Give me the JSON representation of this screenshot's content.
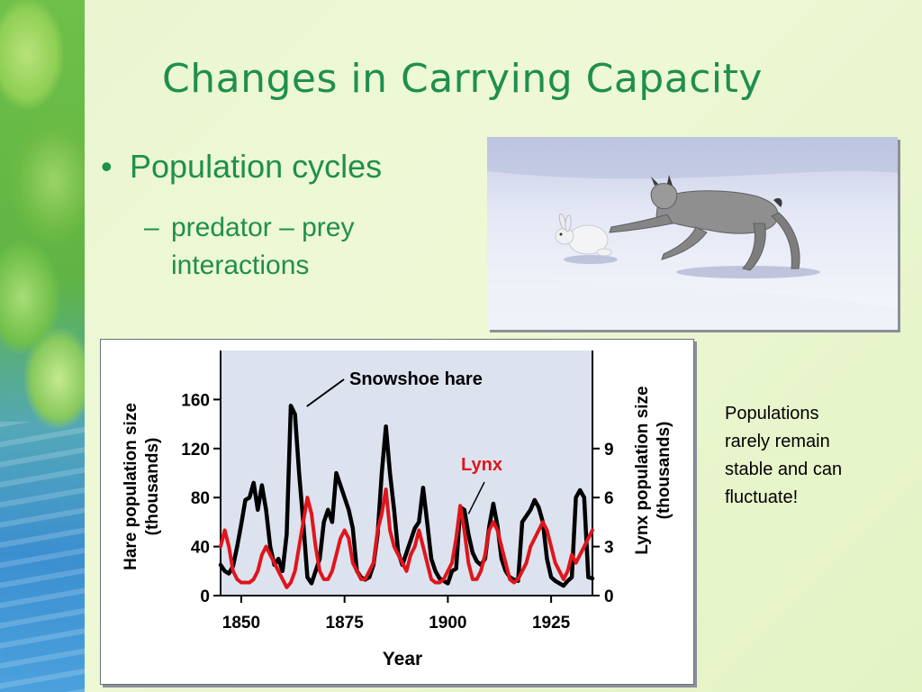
{
  "slide": {
    "title": "Changes in Carrying Capacity",
    "bullet": "Population cycles",
    "sub_bullet_dash": "–",
    "sub_bullet": "predator – prey interactions",
    "sub_bullet_lines": [
      "predator – prey",
      "interactions"
    ],
    "note_lines": [
      "Populations",
      "rarely remain",
      "stable and can",
      "fluctuate!"
    ]
  },
  "chart_data": {
    "type": "line",
    "xlabel": "Year",
    "ylabel_left": [
      "Hare population size",
      "(thousands)"
    ],
    "ylabel_right": [
      "Lynx population size",
      "(thousands)"
    ],
    "x_ticks": [
      1850,
      1875,
      1900,
      1925
    ],
    "y_left_ticks": [
      0,
      40,
      80,
      120,
      160
    ],
    "y_right_ticks": [
      0,
      3,
      6,
      9
    ],
    "xlim": [
      1845,
      1935
    ],
    "ylim_left": [
      0,
      200
    ],
    "ylim_right": [
      0,
      15
    ],
    "grid": false,
    "series": [
      {
        "name": "Snowshoe hare",
        "axis": "left",
        "color": "#000000",
        "x": [
          1845,
          1846,
          1847,
          1848,
          1849,
          1850,
          1851,
          1852,
          1853,
          1854,
          1855,
          1856,
          1857,
          1858,
          1859,
          1860,
          1861,
          1862,
          1863,
          1864,
          1865,
          1866,
          1867,
          1868,
          1869,
          1870,
          1871,
          1872,
          1873,
          1874,
          1875,
          1876,
          1877,
          1878,
          1879,
          1880,
          1881,
          1882,
          1883,
          1884,
          1885,
          1886,
          1887,
          1888,
          1889,
          1890,
          1891,
          1892,
          1893,
          1894,
          1895,
          1896,
          1897,
          1898,
          1899,
          1900,
          1901,
          1902,
          1903,
          1904,
          1905,
          1906,
          1907,
          1908,
          1909,
          1910,
          1911,
          1912,
          1913,
          1914,
          1915,
          1916,
          1917,
          1918,
          1919,
          1920,
          1921,
          1922,
          1923,
          1924,
          1925,
          1926,
          1927,
          1928,
          1929,
          1930,
          1931,
          1932,
          1933,
          1934,
          1935
        ],
        "values": [
          25,
          20,
          18,
          24,
          40,
          58,
          78,
          80,
          92,
          70,
          90,
          70,
          40,
          25,
          30,
          20,
          50,
          155,
          148,
          100,
          60,
          15,
          10,
          20,
          30,
          60,
          70,
          60,
          100,
          90,
          80,
          70,
          55,
          20,
          15,
          13,
          15,
          25,
          50,
          100,
          138,
          100,
          70,
          35,
          25,
          35,
          45,
          55,
          60,
          88,
          60,
          30,
          20,
          14,
          12,
          10,
          20,
          22,
          72,
          70,
          50,
          35,
          28,
          25,
          30,
          56,
          75,
          57,
          30,
          20,
          15,
          13,
          12,
          60,
          65,
          70,
          78,
          72,
          60,
          30,
          15,
          12,
          10,
          8,
          12,
          15,
          80,
          86,
          80,
          15,
          14
        ]
      },
      {
        "name": "Lynx",
        "axis": "right",
        "color": "#e0151b",
        "x": [
          1845,
          1846,
          1847,
          1848,
          1849,
          1850,
          1851,
          1852,
          1853,
          1854,
          1855,
          1856,
          1857,
          1858,
          1859,
          1860,
          1861,
          1862,
          1863,
          1864,
          1865,
          1866,
          1867,
          1868,
          1869,
          1870,
          1871,
          1872,
          1873,
          1874,
          1875,
          1876,
          1877,
          1878,
          1879,
          1880,
          1881,
          1882,
          1883,
          1884,
          1885,
          1886,
          1887,
          1888,
          1889,
          1890,
          1891,
          1892,
          1893,
          1894,
          1895,
          1896,
          1897,
          1898,
          1899,
          1900,
          1901,
          1902,
          1903,
          1904,
          1905,
          1906,
          1907,
          1908,
          1909,
          1910,
          1911,
          1912,
          1913,
          1914,
          1915,
          1916,
          1917,
          1918,
          1919,
          1920,
          1921,
          1922,
          1923,
          1924,
          1925,
          1926,
          1927,
          1928,
          1929,
          1930,
          1931,
          1932,
          1933,
          1934,
          1935
        ],
        "values": [
          3,
          4,
          3,
          1.5,
          1,
          0.8,
          0.8,
          0.8,
          1,
          1.5,
          2.5,
          3,
          2.5,
          2,
          1.5,
          1,
          0.5,
          0.8,
          1.5,
          3,
          4.5,
          6,
          5,
          3,
          1.5,
          1,
          1,
          1.5,
          2.5,
          3.5,
          4,
          3.5,
          2,
          1.5,
          1,
          1,
          1.5,
          2,
          4,
          5,
          6.5,
          4,
          3,
          2.5,
          2,
          1.5,
          2.5,
          3,
          4,
          3,
          2,
          1,
          0.8,
          0.8,
          1,
          1.5,
          2,
          3.5,
          5.5,
          4,
          2,
          1,
          1,
          1.5,
          2.5,
          4,
          4.5,
          4,
          3,
          2,
          1,
          0.8,
          1,
          1.5,
          2,
          3,
          3.5,
          4,
          4.5,
          4,
          3,
          2,
          1.5,
          1,
          1.5,
          2.5,
          2,
          2.5,
          3,
          3.5,
          4
        ]
      }
    ],
    "annotations": [
      {
        "text": "Snowshoe hare",
        "color": "#000000",
        "points_to_x": 1865,
        "points_to_y_left": 150
      },
      {
        "text": "Lynx",
        "color": "#e0151b",
        "points_to_x": 1905,
        "points_to_y_right": 5
      }
    ]
  }
}
